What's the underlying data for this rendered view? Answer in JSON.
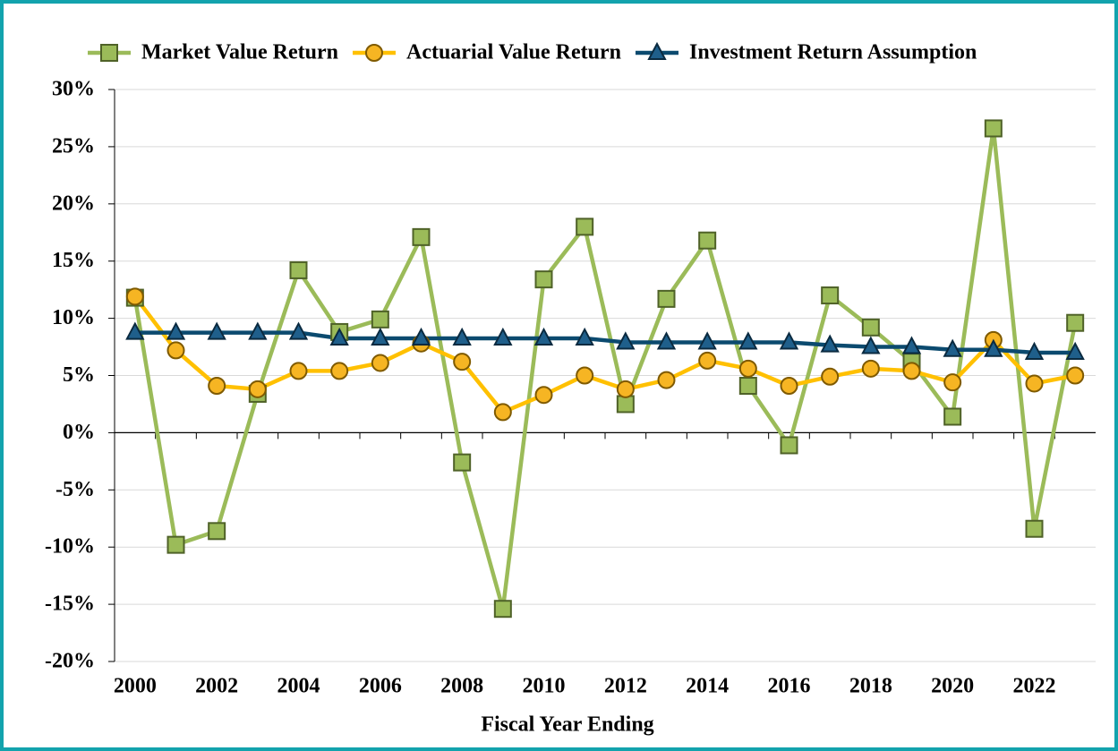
{
  "chart_data": {
    "type": "line",
    "x_label": "Fiscal Year Ending",
    "x": [
      2000,
      2001,
      2002,
      2003,
      2004,
      2005,
      2006,
      2007,
      2008,
      2009,
      2010,
      2011,
      2012,
      2013,
      2014,
      2015,
      2016,
      2017,
      2018,
      2019,
      2020,
      2021,
      2022,
      2023
    ],
    "xlim": [
      1999.5,
      2023.5
    ],
    "xticks": [
      2000,
      2002,
      2004,
      2006,
      2008,
      2010,
      2012,
      2014,
      2016,
      2018,
      2020,
      2022
    ],
    "ylim": [
      -20,
      30
    ],
    "yticks": [
      {
        "value": -20,
        "label": "-20%"
      },
      {
        "value": -15,
        "label": "-15%"
      },
      {
        "value": -10,
        "label": "-10%"
      },
      {
        "value": -5,
        "label": "-5%"
      },
      {
        "value": 0,
        "label": "0%"
      },
      {
        "value": 5,
        "label": "5%"
      },
      {
        "value": 10,
        "label": "10%"
      },
      {
        "value": 15,
        "label": "15%"
      },
      {
        "value": 20,
        "label": "20%"
      },
      {
        "value": 25,
        "label": "25%"
      },
      {
        "value": 30,
        "label": "30%"
      }
    ],
    "grid": true,
    "legend": "top",
    "series": [
      {
        "name": "Market Value Return",
        "color": "#9bbb59",
        "marker": "square",
        "marker_fill": "#9bbb59",
        "marker_stroke": "#4f6228",
        "values": [
          11.8,
          -9.8,
          -8.6,
          3.4,
          14.2,
          8.8,
          9.9,
          17.1,
          -2.6,
          -15.4,
          13.4,
          18.0,
          2.5,
          11.7,
          16.8,
          4.1,
          -1.1,
          12.0,
          9.2,
          6.2,
          1.4,
          26.6,
          -8.4,
          9.6
        ]
      },
      {
        "name": "Actuarial Value Return",
        "color": "#ffc000",
        "marker": "circle",
        "marker_fill": "#f6b523",
        "marker_stroke": "#7f5a00",
        "values": [
          11.9,
          7.2,
          4.1,
          3.8,
          5.4,
          5.4,
          6.1,
          7.8,
          6.2,
          1.8,
          3.3,
          5.0,
          3.8,
          4.6,
          6.3,
          5.6,
          4.1,
          4.9,
          5.6,
          5.4,
          4.4,
          8.1,
          4.3,
          5.0
        ]
      },
      {
        "name": "Investment Return Assumption",
        "color": "#0b4a6f",
        "marker": "triangle",
        "marker_fill": "#1f5f8b",
        "marker_stroke": "#0a2a40",
        "values": [
          8.75,
          8.75,
          8.75,
          8.75,
          8.75,
          8.25,
          8.25,
          8.25,
          8.25,
          8.25,
          8.25,
          8.25,
          7.9,
          7.9,
          7.9,
          7.9,
          7.9,
          7.65,
          7.5,
          7.5,
          7.25,
          7.25,
          7.0,
          7.0
        ]
      }
    ]
  }
}
